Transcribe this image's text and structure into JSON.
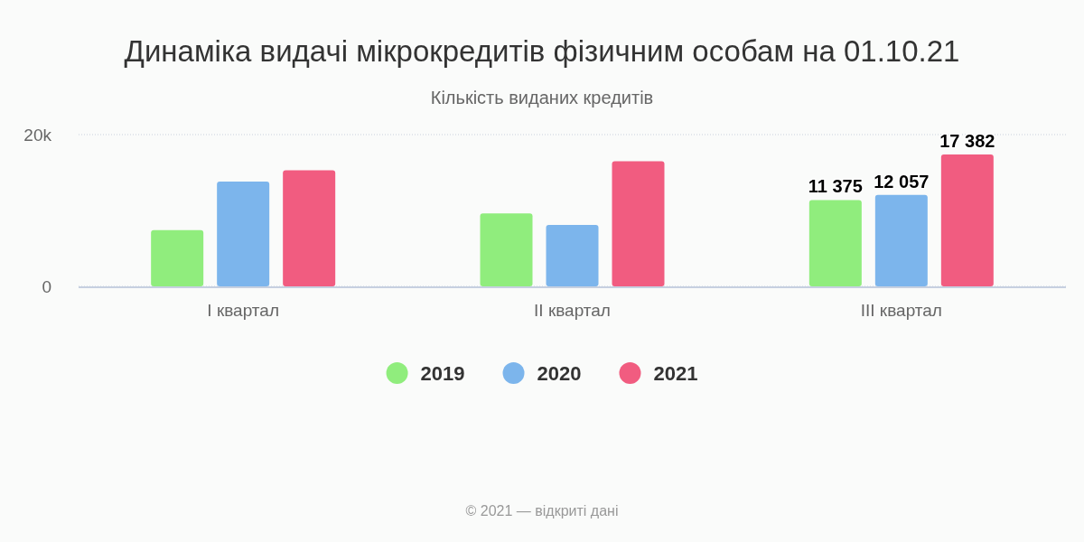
{
  "chart_data": {
    "type": "bar",
    "title": "Динаміка видачі мікрокредитів фізичним особам на 01.10.21",
    "subtitle": "Кількість виданих кредитів",
    "categories": [
      "I квартал",
      "II квартал",
      "III квартал"
    ],
    "series": [
      {
        "name": "2019",
        "color": "#90ed7d",
        "values": [
          7400,
          9600,
          11375
        ],
        "value_labels": [
          null,
          null,
          "11 375"
        ]
      },
      {
        "name": "2020",
        "color": "#7cb5ec",
        "values": [
          13800,
          8100,
          12057
        ],
        "value_labels": [
          null,
          null,
          "12 057"
        ]
      },
      {
        "name": "2021",
        "color": "#f15c80",
        "values": [
          15300,
          16500,
          17382
        ],
        "value_labels": [
          null,
          null,
          "17 382"
        ]
      }
    ],
    "ylim": [
      0,
      20000
    ],
    "yticks": [
      0,
      {
        "value": 20000,
        "label": "20k"
      }
    ],
    "grid": "y",
    "legend": "bottom",
    "annotations": [
      "© 2021 — відкриті дані"
    ]
  }
}
